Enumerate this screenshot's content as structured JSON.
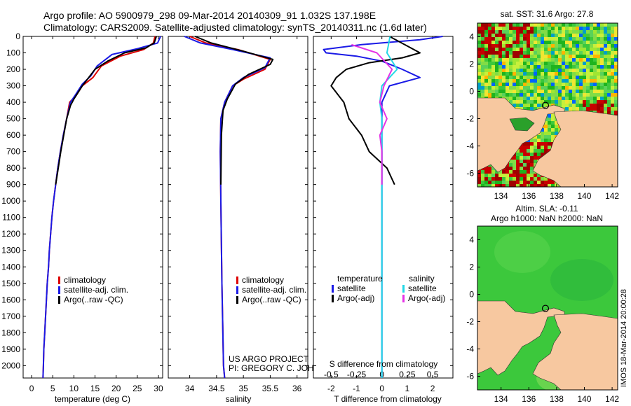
{
  "header": {
    "line1": "Argo profile: AO 5900979_298 09-Mar-2014 20140309_91 1.032S 137.198E",
    "line2": "Climatology: CARS2009. Satellite-adjusted climatology: synTS_20140311.nc (1.6d later)"
  },
  "colors": {
    "climatology": "#dd0000",
    "satellite": "#1a1ae6",
    "argo": "#000000",
    "sal_satellite": "#22d8e6",
    "sal_argo": "#e632e6",
    "land": "#f7c8a0",
    "sla_sea": "#3cc83c"
  },
  "credit": {
    "line1": "US ARGO PROJECT",
    "line2": "PI: GREGORY C. JOHNSON"
  },
  "watermark": "IMOS 18-Mar-2014 20:00:28",
  "chart_data": [
    {
      "type": "line",
      "xlabel": "temperature (deg C)",
      "xlim": [
        -2,
        31
      ],
      "xticks": [
        0,
        5,
        10,
        15,
        20,
        25,
        30
      ],
      "ylim": [
        2075,
        0
      ],
      "yticks": [
        0,
        100,
        200,
        300,
        400,
        500,
        600,
        700,
        800,
        900,
        1000,
        1100,
        1200,
        1300,
        1400,
        1500,
        1600,
        1700,
        1800,
        1900,
        2000
      ],
      "legend": [
        "climatology",
        "satellite-adj. clim.",
        "Argo(..raw -QC)"
      ],
      "series": [
        {
          "name": "climatology",
          "color": "#dd0000",
          "points": [
            [
              29.2,
              0
            ],
            [
              28.8,
              40
            ],
            [
              26.5,
              80
            ],
            [
              21,
              120
            ],
            [
              16.5,
              180
            ],
            [
              14.5,
              250
            ],
            [
              12,
              300
            ],
            [
              10.5,
              360
            ],
            [
              9,
              400
            ],
            [
              8.3,
              500
            ],
            [
              7.5,
              600
            ],
            [
              6.8,
              700
            ],
            [
              6.2,
              800
            ],
            [
              5.7,
              900
            ],
            [
              5.2,
              1000
            ],
            [
              4.8,
              1100
            ],
            [
              4.5,
              1200
            ],
            [
              4.2,
              1300
            ],
            [
              4,
              1400
            ],
            [
              3.7,
              1500
            ],
            [
              3.5,
              1600
            ],
            [
              3.3,
              1700
            ],
            [
              3.1,
              1800
            ],
            [
              2.9,
              1900
            ],
            [
              2.8,
              2000
            ],
            [
              2.7,
              2075
            ]
          ]
        },
        {
          "name": "satellite-adj. clim.",
          "color": "#1a1ae6",
          "points": [
            [
              30.5,
              0
            ],
            [
              29.8,
              40
            ],
            [
              25,
              75
            ],
            [
              19,
              110
            ],
            [
              15.5,
              180
            ],
            [
              14,
              240
            ],
            [
              12,
              290
            ],
            [
              10.5,
              350
            ],
            [
              9.2,
              400
            ],
            [
              8.3,
              500
            ],
            [
              7.5,
              600
            ],
            [
              6.8,
              700
            ],
            [
              6.2,
              800
            ],
            [
              5.7,
              900
            ],
            [
              5.2,
              1000
            ],
            [
              4.8,
              1100
            ],
            [
              4.5,
              1200
            ],
            [
              4.2,
              1300
            ],
            [
              4,
              1400
            ],
            [
              3.7,
              1500
            ],
            [
              3.5,
              1600
            ],
            [
              3.3,
              1700
            ],
            [
              3.1,
              1800
            ],
            [
              2.9,
              1900
            ],
            [
              2.8,
              2000
            ],
            [
              2.7,
              2075
            ]
          ]
        },
        {
          "name": "Argo(..raw -QC)",
          "color": "#000000",
          "points": [
            [
              29.5,
              0
            ],
            [
              29,
              40
            ],
            [
              27,
              70
            ],
            [
              22,
              100
            ],
            [
              18,
              150
            ],
            [
              15,
              200
            ],
            [
              13.5,
              250
            ],
            [
              12,
              300
            ],
            [
              10,
              380
            ],
            [
              9.2,
              420
            ],
            [
              8.3,
              500
            ],
            [
              7.6,
              600
            ],
            [
              6.9,
              700
            ],
            [
              6.3,
              800
            ],
            [
              5.7,
              900
            ]
          ]
        }
      ]
    },
    {
      "type": "line",
      "xlabel": "salinity",
      "xlim": [
        33.6,
        36.2
      ],
      "xticks": [
        34,
        34.5,
        35,
        35.5,
        36
      ],
      "ylim": [
        2075,
        0
      ],
      "legend": [
        "climatology",
        "satellite-adj. clim.",
        "Argo(..raw -QC)"
      ],
      "series": [
        {
          "name": "climatology",
          "color": "#dd0000",
          "points": [
            [
              34.0,
              0
            ],
            [
              34.3,
              40
            ],
            [
              34.9,
              80
            ],
            [
              35.5,
              140
            ],
            [
              35.4,
              200
            ],
            [
              35.0,
              260
            ],
            [
              34.8,
              300
            ],
            [
              34.65,
              400
            ],
            [
              34.58,
              500
            ],
            [
              34.57,
              700
            ],
            [
              34.58,
              1000
            ],
            [
              34.6,
              1500
            ],
            [
              34.63,
              2000
            ],
            [
              34.65,
              2075
            ]
          ]
        },
        {
          "name": "satellite-adj. clim.",
          "color": "#1a1ae6",
          "points": [
            [
              33.9,
              0
            ],
            [
              34.2,
              40
            ],
            [
              34.8,
              80
            ],
            [
              35.5,
              130
            ],
            [
              35.4,
              190
            ],
            [
              35.0,
              250
            ],
            [
              34.8,
              300
            ],
            [
              34.65,
              400
            ],
            [
              34.58,
              500
            ],
            [
              34.57,
              700
            ],
            [
              34.58,
              1000
            ],
            [
              34.6,
              1500
            ],
            [
              34.63,
              2000
            ],
            [
              34.65,
              2075
            ]
          ]
        },
        {
          "name": "Argo(..raw -QC)",
          "color": "#000000",
          "points": [
            [
              34.1,
              0
            ],
            [
              34.4,
              40
            ],
            [
              35.0,
              90
            ],
            [
              35.55,
              140
            ],
            [
              35.5,
              170
            ],
            [
              35.1,
              230
            ],
            [
              34.85,
              290
            ],
            [
              34.7,
              380
            ],
            [
              34.62,
              450
            ],
            [
              34.59,
              600
            ],
            [
              34.58,
              900
            ]
          ]
        }
      ]
    },
    {
      "type": "line",
      "xlabel": "T difference from climatology",
      "x2label": "S difference from climatology",
      "xlim": [
        -2.7,
        2.8
      ],
      "xticks": [
        -2,
        -1,
        0,
        1,
        2
      ],
      "x2ticks": [
        -0.5,
        -0.25,
        0,
        0.25,
        0.5
      ],
      "ylim": [
        2075,
        0
      ],
      "legend_titles": [
        "temperature",
        "salinity"
      ],
      "legend": [
        "satellite",
        "Argo(-adj)",
        "satellite",
        "Argo(-adj)"
      ],
      "series": [
        {
          "name": "temperature satellite",
          "color": "#1a1ae6",
          "points": [
            [
              2.4,
              0
            ],
            [
              1.5,
              20
            ],
            [
              -0.8,
              50
            ],
            [
              -2.3,
              80
            ],
            [
              -2.2,
              100
            ],
            [
              -1.0,
              120
            ],
            [
              0,
              150
            ],
            [
              0.8,
              200
            ],
            [
              1.5,
              250
            ],
            [
              0.3,
              300
            ],
            [
              0,
              400
            ],
            [
              0,
              700
            ],
            [
              0,
              1000
            ],
            [
              0,
              1500
            ],
            [
              0,
              2075
            ]
          ]
        },
        {
          "name": "temperature Argo(-adj)",
          "color": "#000000",
          "points": [
            [
              0.3,
              0
            ],
            [
              1.5,
              100
            ],
            [
              0.8,
              130
            ],
            [
              -0.5,
              160
            ],
            [
              -1.4,
              200
            ],
            [
              -1.8,
              250
            ],
            [
              -2,
              300
            ],
            [
              -1.5,
              400
            ],
            [
              -1.3,
              500
            ],
            [
              -0.8,
              600
            ],
            [
              -0.5,
              700
            ],
            [
              0.2,
              800
            ],
            [
              0.5,
              900
            ]
          ]
        },
        {
          "name": "salinity satellite",
          "color": "#22d8e6",
          "points": [
            [
              0.08,
              0
            ],
            [
              0.05,
              100
            ],
            [
              0.15,
              200
            ],
            [
              0.0,
              300
            ],
            [
              -0.02,
              400
            ],
            [
              0,
              500
            ],
            [
              0,
              1000
            ],
            [
              0,
              1500
            ],
            [
              0,
              2075
            ]
          ]
        },
        {
          "name": "salinity Argo(-adj)",
          "color": "#e632e6",
          "points": [
            [
              -0.3,
              50
            ],
            [
              -0.05,
              100
            ],
            [
              0.1,
              200
            ],
            [
              0.02,
              300
            ],
            [
              -0.02,
              400
            ],
            [
              0.05,
              500
            ],
            [
              -0.02,
              600
            ],
            [
              0,
              700
            ],
            [
              0,
              900
            ]
          ]
        }
      ]
    },
    {
      "type": "heatmap",
      "title": "sat. SST: 31.6 Argo: 27.8",
      "xticks": [
        134,
        136,
        138,
        140,
        142
      ],
      "yticks": [
        4,
        2,
        0,
        -2,
        -4,
        -6
      ],
      "xlim": [
        132.3,
        142.4
      ],
      "ylim": [
        -7,
        5
      ]
    },
    {
      "type": "heatmap",
      "title_line1": "Altim. SLA: -0.11",
      "title_line2": "Argo h1000: NaN h2000: NaN",
      "xticks": [
        134,
        136,
        138,
        140,
        142
      ],
      "yticks": [
        4,
        2,
        0,
        -2,
        -4,
        -6
      ],
      "xlim": [
        132.3,
        142.4
      ],
      "ylim": [
        -7,
        5
      ]
    }
  ]
}
